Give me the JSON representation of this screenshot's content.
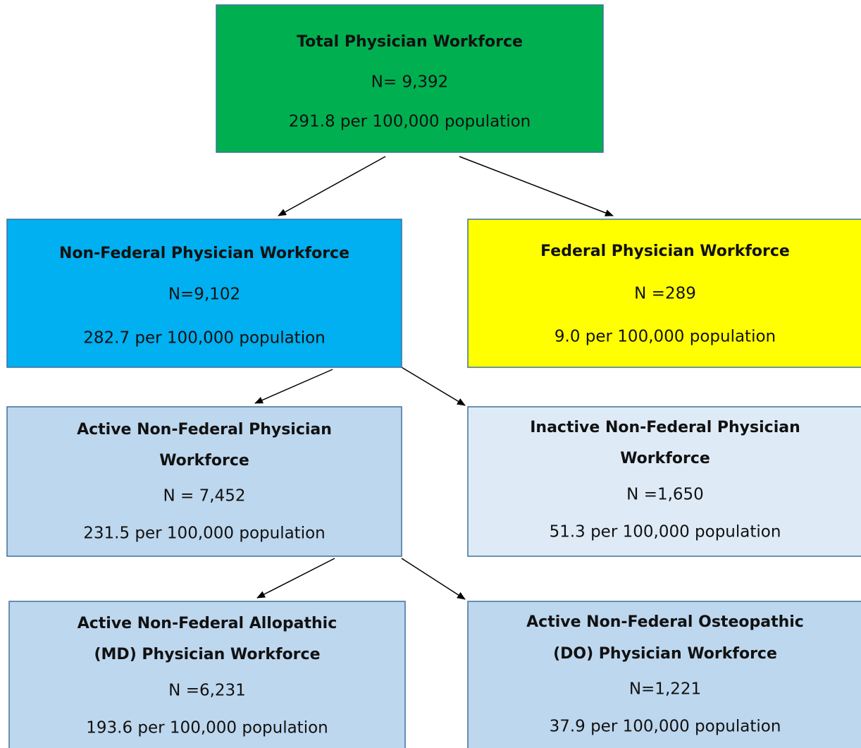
{
  "nodes": [
    {
      "title": [
        "Total Physician Workforce"
      ],
      "n": "N= 9,392",
      "rate": "291.8 per 100,000 population"
    },
    {
      "title": [
        "Non-Federal Physician Workforce"
      ],
      "n": "N=9,102",
      "rate": "282.7 per 100,000 population"
    },
    {
      "title": [
        "Federal Physician Workforce"
      ],
      "n": "N =289",
      "rate": "9.0 per 100,000 population"
    },
    {
      "title": [
        "Active Non-Federal Physician",
        "Workforce"
      ],
      "n": "N = 7,452",
      "rate": "231.5 per 100,000 population"
    },
    {
      "title": [
        "Inactive Non-Federal Physician",
        "Workforce"
      ],
      "n": "N =1,650",
      "rate": "51.3 per 100,000 population"
    },
    {
      "title": [
        "Active Non-Federal Allopathic",
        "(MD) Physician Workforce"
      ],
      "n": "N =6,231",
      "rate": "193.6 per 100,000 population"
    },
    {
      "title": [
        "Active Non-Federal Osteopathic",
        "(DO) Physician Workforce"
      ],
      "n": "N=1,221",
      "rate": "37.9 per 100,000 population"
    }
  ]
}
